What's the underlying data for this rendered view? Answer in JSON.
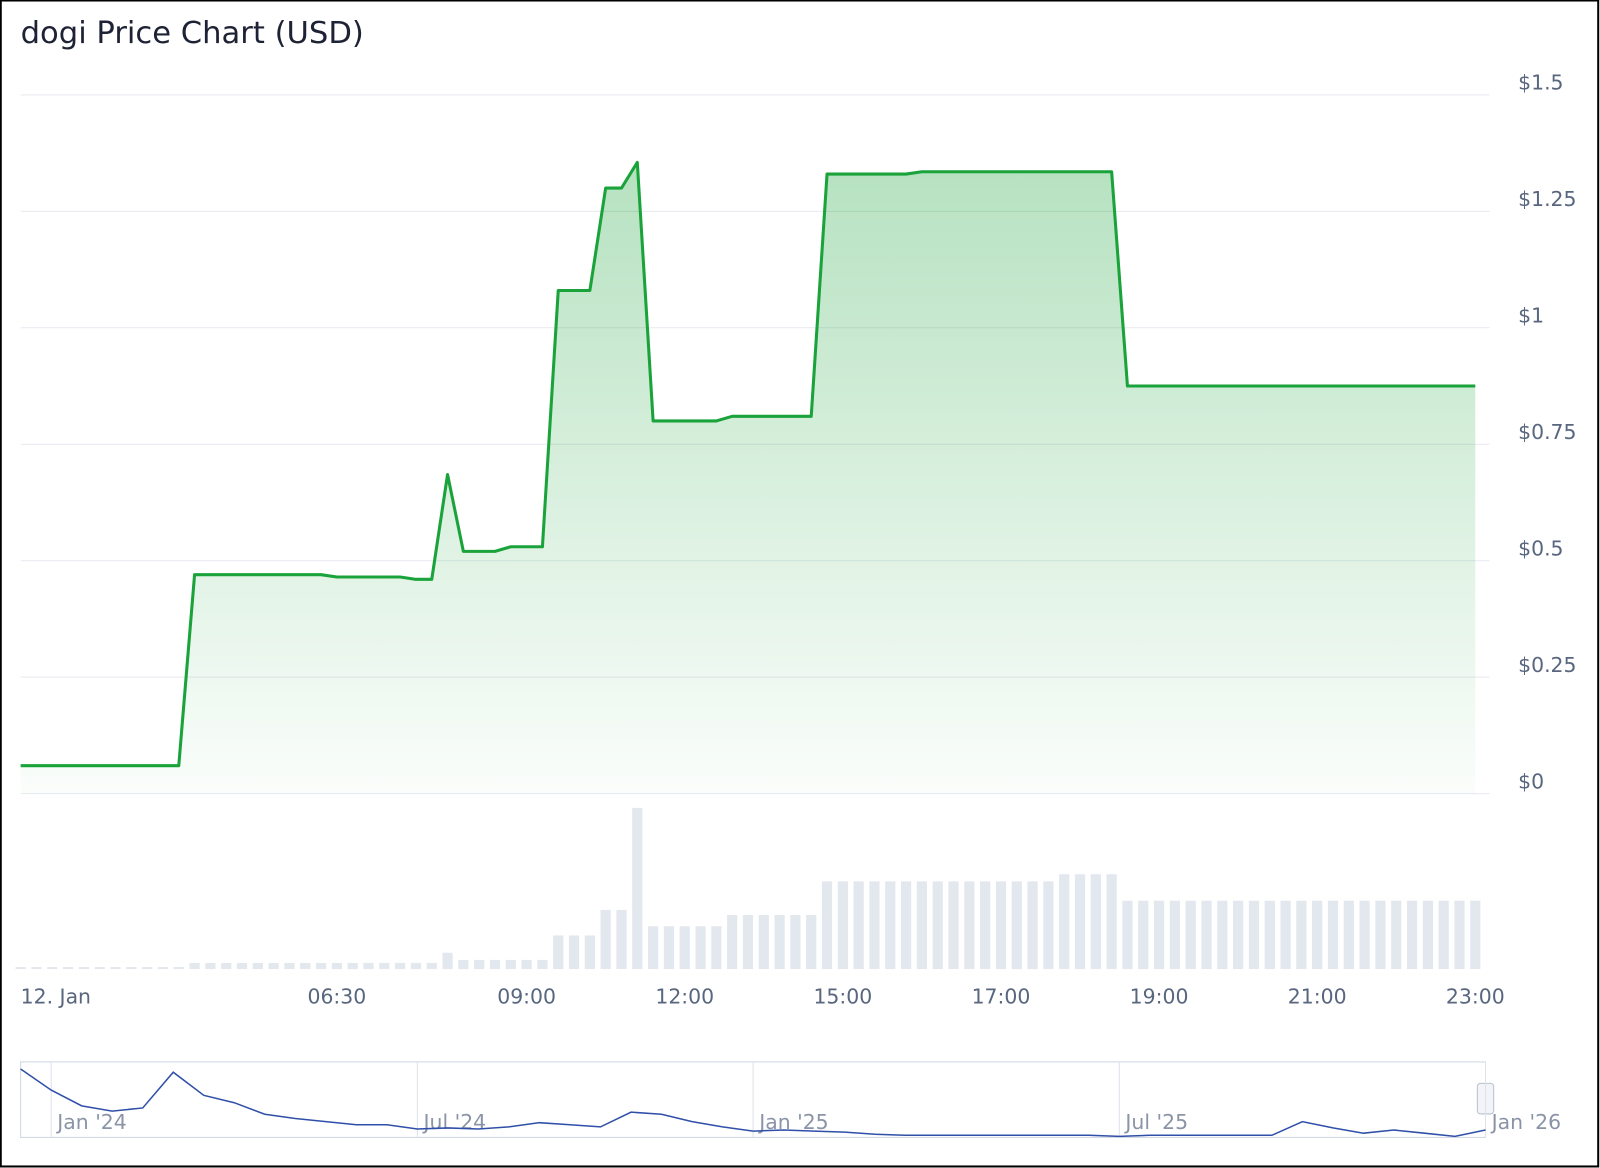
{
  "chart_data": {
    "type": "area",
    "title": "dogi Price Chart (USD)",
    "color": "#1aa33a",
    "grid": true,
    "ylim": [
      0,
      1.5
    ],
    "yticks": [
      {
        "value": 0,
        "label": "$0"
      },
      {
        "value": 0.25,
        "label": "$0.25"
      },
      {
        "value": 0.5,
        "label": "$0.5"
      },
      {
        "value": 0.75,
        "label": "$0.75"
      },
      {
        "value": 1,
        "label": "$1"
      },
      {
        "value": 1.25,
        "label": "$1.25"
      },
      {
        "value": 1.5,
        "label": "$1.5"
      }
    ],
    "categories": [
      "12. Jan",
      null,
      null,
      null,
      null,
      null,
      null,
      null,
      null,
      null,
      null,
      null,
      null,
      null,
      null,
      null,
      null,
      null,
      null,
      null,
      "06:30",
      null,
      null,
      null,
      null,
      null,
      null,
      null,
      null,
      null,
      null,
      null,
      "09:00",
      null,
      null,
      null,
      null,
      null,
      null,
      null,
      null,
      null,
      "12:00",
      null,
      null,
      null,
      null,
      null,
      null,
      null,
      null,
      null,
      "15:00",
      null,
      null,
      null,
      null,
      null,
      null,
      null,
      null,
      null,
      "17:00",
      null,
      null,
      null,
      null,
      null,
      null,
      null,
      null,
      null,
      "19:00",
      null,
      null,
      null,
      null,
      null,
      null,
      null,
      null,
      null,
      "21:00",
      null,
      null,
      null,
      null,
      null,
      null,
      null,
      null,
      null,
      "23:00"
    ],
    "values": [
      0.06,
      0.06,
      0.06,
      0.06,
      0.06,
      0.06,
      0.06,
      0.06,
      0.06,
      0.06,
      0.06,
      0.47,
      0.47,
      0.47,
      0.47,
      0.47,
      0.47,
      0.47,
      0.47,
      0.47,
      0.465,
      0.465,
      0.465,
      0.465,
      0.465,
      0.46,
      0.46,
      0.685,
      0.52,
      0.52,
      0.52,
      0.53,
      0.53,
      0.53,
      1.08,
      1.08,
      1.08,
      1.3,
      1.3,
      1.355,
      0.8,
      0.8,
      0.8,
      0.8,
      0.8,
      0.81,
      0.81,
      0.81,
      0.81,
      0.81,
      0.81,
      1.33,
      1.33,
      1.33,
      1.33,
      1.33,
      1.33,
      1.335,
      1.335,
      1.335,
      1.335,
      1.335,
      1.335,
      1.335,
      1.335,
      1.335,
      1.335,
      1.335,
      1.335,
      1.335,
      0.875,
      0.875,
      0.875,
      0.875,
      0.875,
      0.875,
      0.875,
      0.875,
      0.875,
      0.875,
      0.875,
      0.875,
      0.875,
      0.875,
      0.875,
      0.875,
      0.875,
      0.875,
      0.875,
      0.875,
      0.875,
      0.875,
      0.875
    ],
    "volumes": [
      2,
      2,
      2,
      2,
      2,
      2,
      2,
      2,
      2,
      2,
      2,
      6,
      6,
      6,
      6,
      6,
      6,
      6,
      6,
      6,
      6,
      6,
      6,
      6,
      6,
      6,
      6,
      16,
      9,
      9,
      9,
      9,
      9,
      9,
      33,
      33,
      33,
      58,
      58,
      158,
      42,
      42,
      42,
      42,
      42,
      53,
      53,
      53,
      53,
      53,
      53,
      86,
      86,
      86,
      86,
      86,
      86,
      86,
      86,
      86,
      86,
      86,
      86,
      86,
      86,
      86,
      93,
      93,
      93,
      93,
      67,
      67,
      67,
      67,
      67,
      67,
      67,
      67,
      67,
      67,
      67,
      67,
      67,
      67,
      67,
      67,
      67,
      67,
      67,
      67,
      67,
      67,
      67
    ],
    "navigator": {
      "categories": [
        null,
        "Jan '24",
        null,
        null,
        null,
        null,
        null,
        null,
        null,
        null,
        null,
        null,
        null,
        "Jul '24",
        null,
        null,
        null,
        null,
        null,
        null,
        null,
        null,
        null,
        null,
        "Jan '25",
        null,
        null,
        null,
        null,
        null,
        null,
        null,
        null,
        null,
        null,
        null,
        "Jul '25",
        null,
        null,
        null,
        null,
        null,
        null,
        null,
        null,
        null,
        null,
        null,
        "Jan '26"
      ],
      "values": [
        65,
        45,
        30,
        25,
        28,
        62,
        40,
        33,
        22,
        18,
        15,
        12,
        12,
        8,
        9,
        8,
        10,
        14,
        12,
        10,
        24,
        22,
        15,
        10,
        6,
        7,
        6,
        5,
        3,
        2,
        2,
        2,
        2,
        2,
        2,
        2,
        1,
        2,
        2,
        2,
        2,
        2,
        15,
        9,
        4,
        7,
        4,
        1,
        7
      ],
      "color": "#2f4fa8"
    }
  }
}
